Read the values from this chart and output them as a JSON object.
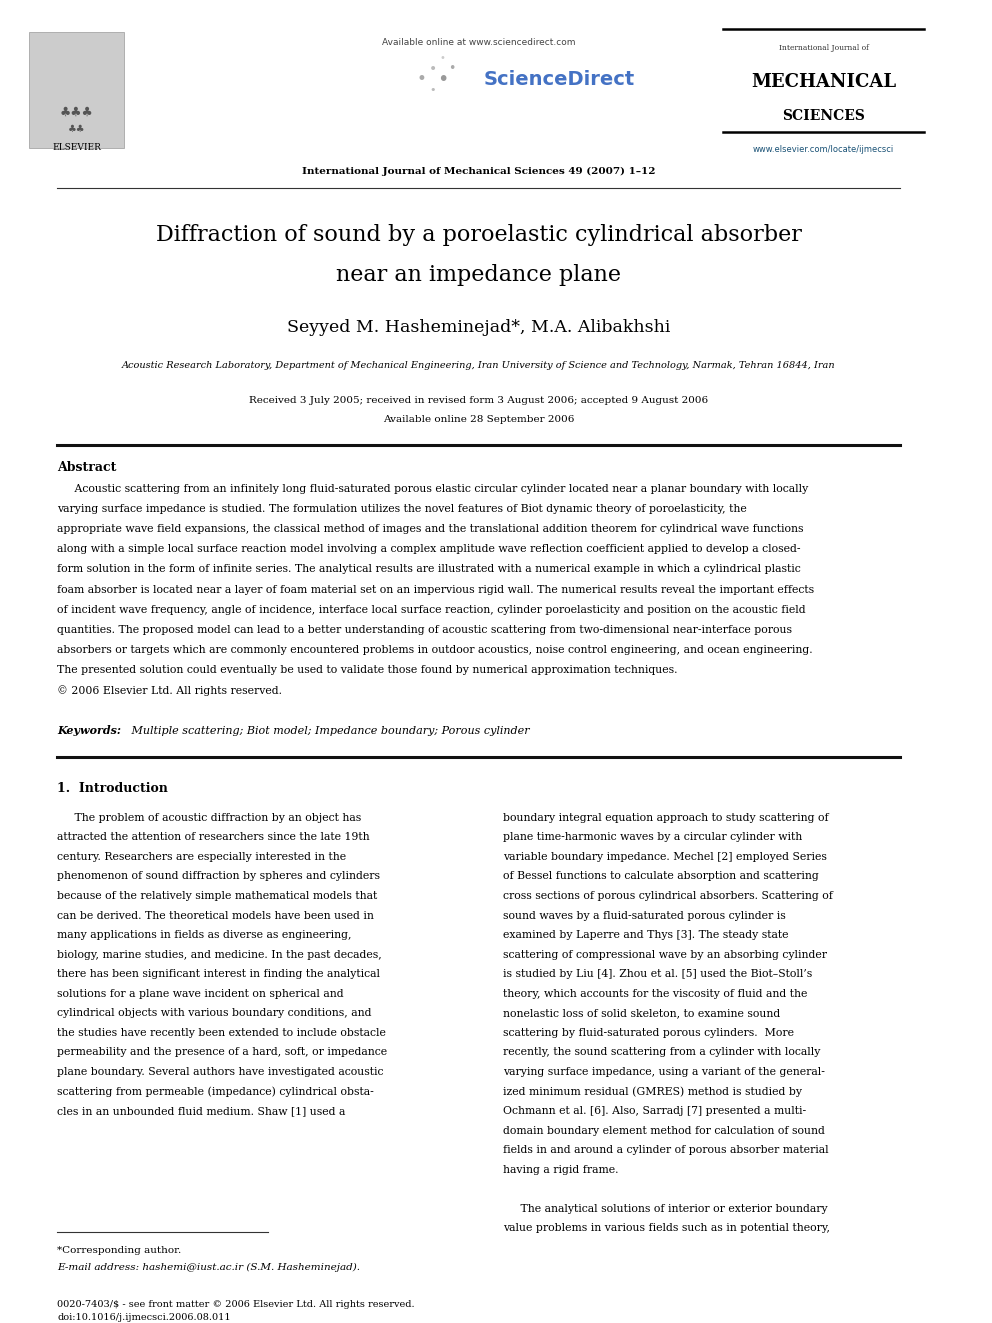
{
  "page_width": 9.92,
  "page_height": 13.23,
  "background_color": "#ffffff",
  "title_line1": "Diffraction of sound by a poroelastic cylindrical absorber",
  "title_line2": "near an impedance plane",
  "authors": "Seyyed M. Hasheminejad*, M.A. Alibakhshi",
  "affiliation": "Acoustic Research Laboratory, Department of Mechanical Engineering, Iran University of Science and Technology, Narmak, Tehran 16844, Iran",
  "received": "Received 3 July 2005; received in revised form 3 August 2006; accepted 9 August 2006",
  "available": "Available online 28 September 2006",
  "journal_header": "International Journal of Mechanical Sciences 49 (2007) 1–12",
  "available_online": "Available online at www.sciencedirect.com",
  "journal_name_line1": "International Journal of",
  "journal_name_line2": "MECHANICAL",
  "journal_name_line3": "SCIENCES",
  "journal_url": "www.elsevier.com/locate/ijmecsci",
  "elsevier_label": "ELSEVIER",
  "abstract_title": "Abstract",
  "keywords_label": "Keywords:",
  "keywords_text": " Multiple scattering; Biot model; Impedance boundary; Porous cylinder",
  "section1_title": "1.  Introduction",
  "footnote_star": "*Corresponding author.",
  "footnote_email": "E-mail address: hashemi@iust.ac.ir (S.M. Hasheminejad).",
  "footer_issn": "0020-7403/$ - see front matter © 2006 Elsevier Ltd. All rights reserved.",
  "footer_doi": "doi:10.1016/j.ijmecsci.2006.08.011",
  "url_color": "#1a5276",
  "sciencedirect_blue": "#4472c4",
  "abstract_lines": [
    "     Acoustic scattering from an infinitely long fluid-saturated porous elastic circular cylinder located near a planar boundary with locally",
    "varying surface impedance is studied. The formulation utilizes the novel features of Biot dynamic theory of poroelasticity, the",
    "appropriate wave field expansions, the classical method of images and the translational addition theorem for cylindrical wave functions",
    "along with a simple local surface reaction model involving a complex amplitude wave reflection coefficient applied to develop a closed-",
    "form solution in the form of infinite series. The analytical results are illustrated with a numerical example in which a cylindrical plastic",
    "foam absorber is located near a layer of foam material set on an impervious rigid wall. The numerical results reveal the important effects",
    "of incident wave frequency, angle of incidence, interface local surface reaction, cylinder poroelasticity and position on the acoustic field",
    "quantities. The proposed model can lead to a better understanding of acoustic scattering from two-dimensional near-interface porous",
    "absorbers or targets which are commonly encountered problems in outdoor acoustics, noise control engineering, and ocean engineering.",
    "The presented solution could eventually be used to validate those found by numerical approximation techniques.",
    "© 2006 Elsevier Ltd. All rights reserved."
  ],
  "col1_lines": [
    "     The problem of acoustic diffraction by an object has",
    "attracted the attention of researchers since the late 19th",
    "century. Researchers are especially interested in the",
    "phenomenon of sound diffraction by spheres and cylinders",
    "because of the relatively simple mathematical models that",
    "can be derived. The theoretical models have been used in",
    "many applications in fields as diverse as engineering,",
    "biology, marine studies, and medicine. In the past decades,",
    "there has been significant interest in finding the analytical",
    "solutions for a plane wave incident on spherical and",
    "cylindrical objects with various boundary conditions, and",
    "the studies have recently been extended to include obstacle",
    "permeability and the presence of a hard, soft, or impedance",
    "plane boundary. Several authors have investigated acoustic",
    "scattering from permeable (impedance) cylindrical obsta-",
    "cles in an unbounded fluid medium. Shaw [1] used a"
  ],
  "col2_lines": [
    "boundary integral equation approach to study scattering of",
    "plane time-harmonic waves by a circular cylinder with",
    "variable boundary impedance. Mechel [2] employed Series",
    "of Bessel functions to calculate absorption and scattering",
    "cross sections of porous cylindrical absorbers. Scattering of",
    "sound waves by a fluid-saturated porous cylinder is",
    "examined by Laperre and Thys [3]. The steady state",
    "scattering of compressional wave by an absorbing cylinder",
    "is studied by Liu [4]. Zhou et al. [5] used the Biot–Stoll’s",
    "theory, which accounts for the viscosity of fluid and the",
    "nonelastic loss of solid skeleton, to examine sound",
    "scattering by fluid-saturated porous cylinders.  More",
    "recently, the sound scattering from a cylinder with locally",
    "varying surface impedance, using a variant of the general-",
    "ized minimum residual (GMRES) method is studied by",
    "Ochmann et al. [6]. Also, Sarradj [7] presented a multi-",
    "domain boundary element method for calculation of sound",
    "fields in and around a cylinder of porous absorber material",
    "having a rigid frame.",
    "",
    "     The analytical solutions of interior or exterior boundary",
    "value problems in various fields such as in potential theory,"
  ]
}
